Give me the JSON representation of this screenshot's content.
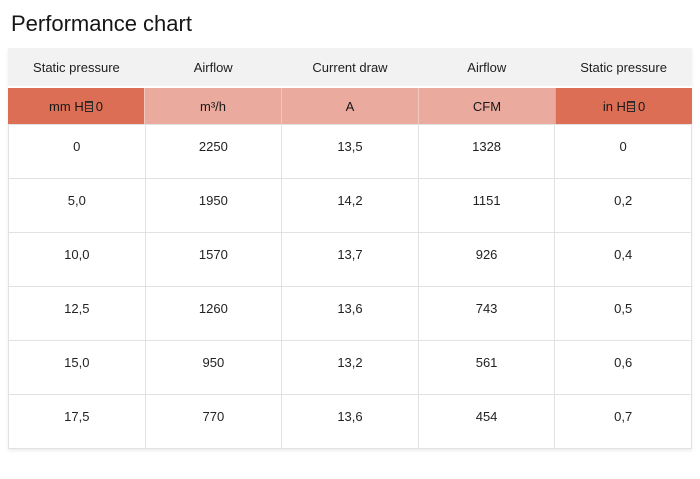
{
  "page": {
    "title": "Performance chart"
  },
  "colors": {
    "dark_accent": "#dd6e56",
    "light_accent": "#ebaa9e",
    "header_bg": "#f2f2f2",
    "border": "#e2e2e2"
  },
  "table": {
    "header_row": [
      "Static pressure",
      "Airflow",
      "Current draw",
      "Airflow",
      "Static pressure"
    ],
    "unit_row": [
      {
        "pre": "mm H",
        "suf": "0",
        "tofu": true,
        "style": "dark"
      },
      {
        "label": "m³/h",
        "style": "light"
      },
      {
        "label": "A",
        "style": "light"
      },
      {
        "label": "CFM",
        "style": "light"
      },
      {
        "pre": "in H",
        "suf": "0",
        "tofu": true,
        "style": "dark"
      }
    ],
    "rows": [
      [
        "0",
        "2250",
        "13,5",
        "1328",
        "0"
      ],
      [
        "5,0",
        "1950",
        "14,2",
        "1151",
        "0,2"
      ],
      [
        "10,0",
        "1570",
        "13,7",
        "926",
        "0,4"
      ],
      [
        "12,5",
        "1260",
        "13,6",
        "743",
        "0,5"
      ],
      [
        "15,0",
        "950",
        "13,2",
        "561",
        "0,6"
      ],
      [
        "17,5",
        "770",
        "13,6",
        "454",
        "0,7"
      ]
    ]
  },
  "chart_data": {
    "type": "table",
    "title": "Performance chart",
    "columns": [
      {
        "name": "Static pressure",
        "unit": "mm H□ 0"
      },
      {
        "name": "Airflow",
        "unit": "m³/h"
      },
      {
        "name": "Current draw",
        "unit": "A"
      },
      {
        "name": "Airflow",
        "unit": "CFM"
      },
      {
        "name": "Static pressure",
        "unit": "in H□ 0"
      }
    ],
    "rows": [
      [
        "0",
        "2250",
        "13,5",
        "1328",
        "0"
      ],
      [
        "5,0",
        "1950",
        "14,2",
        "1151",
        "0,2"
      ],
      [
        "10,0",
        "1570",
        "13,7",
        "926",
        "0,4"
      ],
      [
        "12,5",
        "1260",
        "13,6",
        "743",
        "0,5"
      ],
      [
        "15,0",
        "950",
        "13,2",
        "561",
        "0,6"
      ],
      [
        "17,5",
        "770",
        "13,6",
        "454",
        "0,7"
      ]
    ]
  }
}
